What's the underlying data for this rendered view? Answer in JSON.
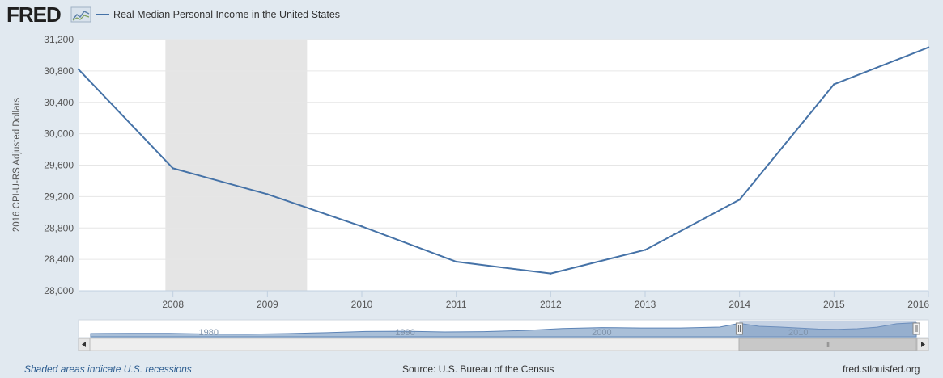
{
  "brand": {
    "logo_text": "FRED"
  },
  "legend": {
    "label": "Real Median Personal Income in the United States"
  },
  "colors": {
    "series": "#4572a7",
    "recession_shade": "#e5e5e5",
    "page_bg": "#e1e9f0",
    "plot_bg": "#ffffff",
    "grid": "#e6e6e6",
    "navigator_fill": "#a9bfd8",
    "navigator_selected": "#7f9bc4"
  },
  "chart_data": {
    "type": "line",
    "title": "Real Median Personal Income in the United States",
    "ylabel": "2016 CPI-U-RS Adjusted Dollars",
    "xlabel": "",
    "x_range": [
      2007,
      2016
    ],
    "ylim": [
      28000,
      31200
    ],
    "yticks": [
      28000,
      28400,
      28800,
      29200,
      29600,
      30000,
      30400,
      30800,
      31200
    ],
    "ytick_labels": [
      "28,000",
      "28,400",
      "28,800",
      "29,200",
      "29,600",
      "30,000",
      "30,400",
      "30,800",
      "31,200"
    ],
    "xticks": [
      2008,
      2009,
      2010,
      2011,
      2012,
      2013,
      2014,
      2015,
      2016
    ],
    "xtick_labels": [
      "2008",
      "2009",
      "2010",
      "2011",
      "2012",
      "2013",
      "2014",
      "2015",
      "2016"
    ],
    "grid": true,
    "legend_position": "top-left",
    "series": [
      {
        "name": "Real Median Personal Income in the United States",
        "x": [
          2007,
          2008,
          2009,
          2010,
          2011,
          2012,
          2013,
          2014,
          2015,
          2016
        ],
        "values": [
          30820,
          29560,
          29230,
          28820,
          28370,
          28220,
          28520,
          29160,
          30630,
          31100
        ]
      }
    ],
    "recessions": [
      {
        "start": 2007.92,
        "end": 2009.42
      }
    ],
    "navigator": {
      "tick_labels": [
        "1980",
        "1990",
        "2000",
        "2010"
      ],
      "label_years": [
        1980,
        1990,
        2000,
        2010
      ],
      "range": [
        1974,
        2016
      ],
      "selected": [
        2007,
        2016
      ],
      "history": [
        [
          1974,
          26400
        ],
        [
          1976,
          26500
        ],
        [
          1978,
          26500
        ],
        [
          1980,
          26200
        ],
        [
          1982,
          26150
        ],
        [
          1984,
          26400
        ],
        [
          1986,
          26800
        ],
        [
          1988,
          27300
        ],
        [
          1990,
          27400
        ],
        [
          1992,
          27100
        ],
        [
          1994,
          27250
        ],
        [
          1996,
          27700
        ],
        [
          1998,
          28600
        ],
        [
          2000,
          29000
        ],
        [
          2002,
          28800
        ],
        [
          2004,
          28800
        ],
        [
          2006,
          29200
        ],
        [
          2007,
          30820
        ],
        [
          2008,
          29560
        ],
        [
          2009,
          29230
        ],
        [
          2010,
          28820
        ],
        [
          2011,
          28370
        ],
        [
          2012,
          28220
        ],
        [
          2013,
          28520
        ],
        [
          2014,
          29160
        ],
        [
          2015,
          30630
        ],
        [
          2016,
          31100
        ]
      ]
    }
  },
  "footer": {
    "recession_note": "Shaded areas indicate U.S. recessions",
    "source": "Source: U.S. Bureau of the Census",
    "site": "fred.stlouisfed.org"
  },
  "scrollbar": {
    "grip_label": "III"
  }
}
